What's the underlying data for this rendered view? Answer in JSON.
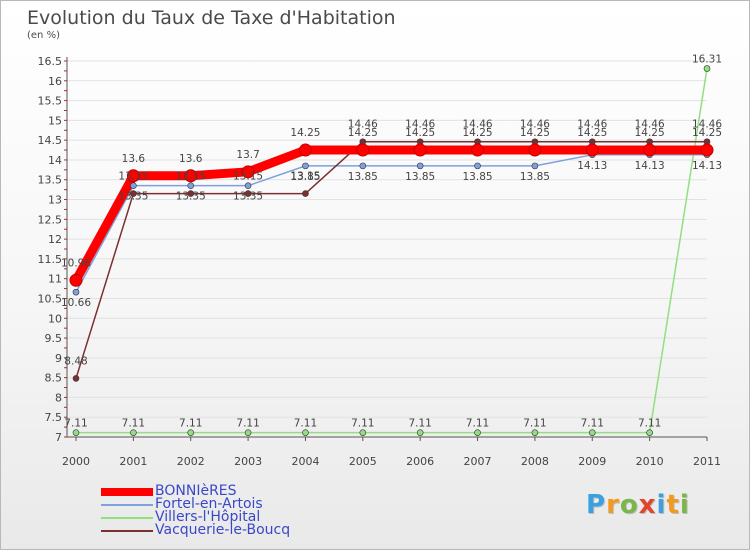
{
  "title": "Evolution du Taux de Taxe d'Habitation",
  "unit_label": "(en %)",
  "logo": {
    "text": "Proxiti",
    "colors": [
      "#3aa0e0",
      "#f29a1d",
      "#7ab648",
      "#e2452b"
    ]
  },
  "chart_data": {
    "type": "line",
    "title": "Evolution du Taux de Taxe d'Habitation",
    "ylabel": "(en %)",
    "xlabel": "",
    "ylim": [
      7,
      16.5
    ],
    "yticks": [
      "7",
      "7.5",
      "8",
      "8.5",
      "9",
      "9.5",
      "10",
      "10.5",
      "11",
      "11.5",
      "12",
      "12.5",
      "13",
      "13.5",
      "14",
      "14.5",
      "15",
      "15.5",
      "16",
      "16.5"
    ],
    "categories": [
      "2000",
      "2001",
      "2002",
      "2003",
      "2004",
      "2005",
      "2006",
      "2007",
      "2008",
      "2009",
      "2010",
      "2011"
    ],
    "legend_position": "bottom-left",
    "series": [
      {
        "name": "BONNIèRES",
        "color": "#ff0000",
        "values": [
          10.96,
          13.6,
          13.6,
          13.7,
          14.25,
          14.25,
          14.25,
          14.25,
          14.25,
          14.25,
          14.25,
          14.25
        ],
        "labels": [
          "10.96",
          "13.6",
          "13.6",
          "13.7",
          "14.25",
          "14.25",
          "14.25",
          "14.25",
          "14.25",
          "14.25",
          "14.25",
          "14.25"
        ]
      },
      {
        "name": "Fortel-en-Artois",
        "color": "#7f9fdf",
        "values": [
          10.66,
          13.35,
          13.35,
          13.35,
          13.85,
          13.85,
          13.85,
          13.85,
          13.85,
          14.13,
          14.13,
          14.13
        ],
        "labels": [
          "10.66",
          "13.35",
          "13.35",
          "13.35",
          "13.85",
          "13.85",
          "13.85",
          "13.85",
          "13.85",
          "14.13",
          "14.13",
          "14.13"
        ]
      },
      {
        "name": "Villers-l'Hôpital",
        "color": "#90e080",
        "values": [
          7.11,
          7.11,
          7.11,
          7.11,
          7.11,
          7.11,
          7.11,
          7.11,
          7.11,
          7.11,
          7.11,
          16.31
        ],
        "labels": [
          "7.11",
          "7.11",
          "7.11",
          "7.11",
          "7.11",
          "7.11",
          "7.11",
          "7.11",
          "7.11",
          "7.11",
          "7.11",
          "16.31"
        ]
      },
      {
        "name": "Vacquerie-le-Boucq",
        "color": "#7a3030",
        "values": [
          8.48,
          13.15,
          13.15,
          13.15,
          13.15,
          14.46,
          14.46,
          14.46,
          14.46,
          14.46,
          14.46,
          14.46
        ],
        "labels": [
          "8.48",
          "13.15",
          "13.15",
          "13.15",
          "13.15",
          "14.46",
          "14.46",
          "14.46",
          "14.46",
          "14.46",
          "14.46",
          "14.46"
        ]
      }
    ]
  }
}
